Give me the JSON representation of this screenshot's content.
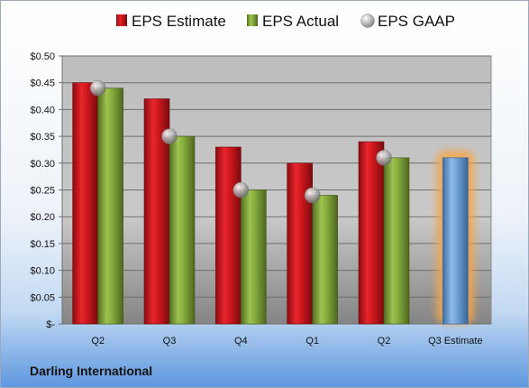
{
  "company": "Darling International",
  "colors": {
    "estimate": "#c8161d",
    "actual": "#7fa33a",
    "gaap": "#b5b5b5",
    "next_estimate": "#6d9fd3",
    "highlight": "#f5a548"
  },
  "legend": [
    {
      "key": "estimate",
      "label": "EPS Estimate",
      "icon": "red-bar-swatch-icon"
    },
    {
      "key": "actual",
      "label": "EPS Actual",
      "icon": "green-bar-swatch-icon"
    },
    {
      "key": "gaap",
      "label": "EPS GAAP",
      "icon": "gray-sphere-icon"
    }
  ],
  "chart_data": {
    "type": "bar",
    "categories": [
      "Q2",
      "Q3",
      "Q4",
      "Q1",
      "Q2",
      "Q3 Estimate"
    ],
    "series": [
      {
        "name": "EPS Estimate",
        "values": [
          0.45,
          0.42,
          0.33,
          0.3,
          0.34,
          null
        ]
      },
      {
        "name": "EPS Actual",
        "values": [
          0.44,
          0.35,
          0.25,
          0.24,
          0.31,
          0.31
        ]
      },
      {
        "name": "EPS GAAP",
        "values": [
          0.44,
          0.35,
          0.25,
          0.24,
          0.31,
          null
        ]
      }
    ],
    "highlighted_category": "Q3 Estimate",
    "ylim": [
      0,
      0.5
    ],
    "yticks": [
      0,
      0.05,
      0.1,
      0.15,
      0.2,
      0.25,
      0.3,
      0.35,
      0.4,
      0.45,
      0.5
    ],
    "ytick_labels": [
      "$-",
      "$0.05",
      "$0.10",
      "$0.15",
      "$0.20",
      "$0.25",
      "$0.30",
      "$0.35",
      "$0.40",
      "$0.45",
      "$0.50"
    ],
    "grid": true,
    "legend_position": "top"
  }
}
